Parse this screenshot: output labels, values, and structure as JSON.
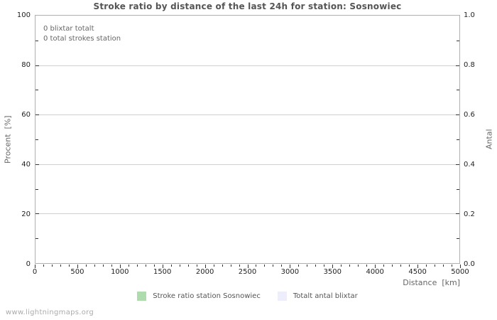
{
  "chart_data": {
    "type": "line",
    "title": "Stroke ratio by distance of the last 24h for station: Sosnowiec",
    "xlabel": "Distance  [km]",
    "ylabel_left": "Procent  [%]",
    "ylabel_right": "Antal",
    "xlim": [
      0,
      5000
    ],
    "ylim_left": [
      0,
      100
    ],
    "ylim_right": [
      0.0,
      1.0
    ],
    "x_ticks": [
      "0",
      "500",
      "1000",
      "1500",
      "2000",
      "2500",
      "3000",
      "3500",
      "4000",
      "4500",
      "5000"
    ],
    "x_major_step": 500,
    "x_minor_step": 100,
    "y_left_ticks": [
      "0",
      "20",
      "40",
      "60",
      "80",
      "100"
    ],
    "y_right_ticks": [
      "0.0",
      "0.2",
      "0.4",
      "0.6",
      "0.8",
      "1.0"
    ],
    "grid": "horizontal-major-only",
    "legend_position": "bottom-center",
    "annotations": [
      "0 blixtar totalt",
      "0 total strokes station"
    ],
    "series": [
      {
        "name": "Stroke ratio station Sosnowiec",
        "color": "#aedcae",
        "values": []
      },
      {
        "name": "Totalt antal blixtar",
        "color": "#ededfb",
        "values": []
      }
    ]
  },
  "footer": {
    "watermark": "www.lightningmaps.org"
  }
}
